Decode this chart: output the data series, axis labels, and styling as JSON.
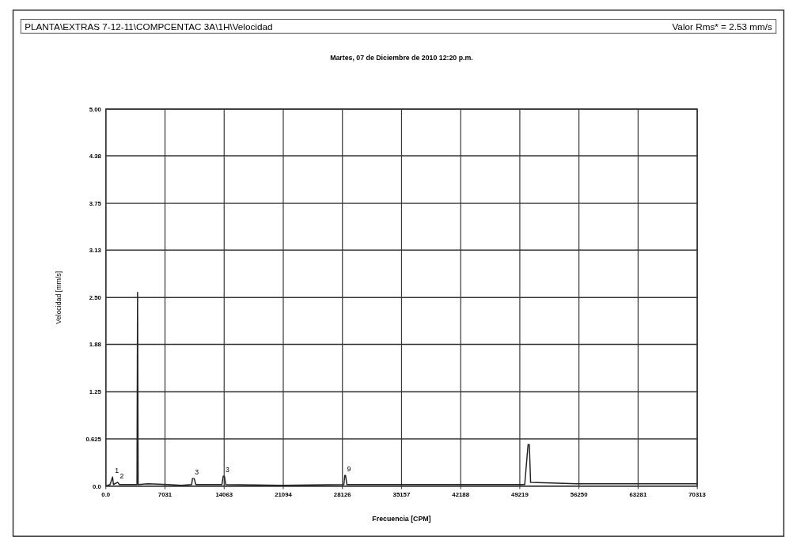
{
  "chart_data": {
    "type": "line",
    "title": "PLANTA\\EXTRAS 7-12-11\\COMPCENTAC 3A\\1H\\Velocidad",
    "subtitle": "Martes, 07 de Diciembre de 2010 12:20 p.m.",
    "xlabel": "Frecuencia [CPM]",
    "ylabel": "Velocidad [mm/s]",
    "annotations": [
      "Valor Rms* = 2.53 mm/s",
      {
        "text": "1",
        "x": 800,
        "y": 0.12
      },
      {
        "text": "2",
        "x": 1400,
        "y": 0.05
      },
      {
        "text": "3",
        "x": 10300,
        "y": 0.1
      },
      {
        "text": "3",
        "x": 13950,
        "y": 0.13
      },
      {
        "text": "9",
        "x": 28400,
        "y": 0.14
      }
    ],
    "series": [
      {
        "color": "#222222",
        "x": [
          0,
          500,
          800,
          900,
          1400,
          1600,
          3700,
          3768,
          3840,
          5000,
          7400,
          9000,
          10200,
          10300,
          10500,
          10700,
          13800,
          13950,
          14100,
          14250,
          21000,
          28300,
          28400,
          28500,
          28650,
          35000,
          42000,
          49800,
          50200,
          50350,
          50500,
          56000,
          63000,
          70313
        ],
        "values": [
          0,
          0.02,
          0.12,
          0.02,
          0.05,
          0.02,
          0.02,
          2.57,
          0.02,
          0.03,
          0.02,
          0.01,
          0.02,
          0.1,
          0.1,
          0.02,
          0.02,
          0.13,
          0.13,
          0.02,
          0.01,
          0.02,
          0.14,
          0.14,
          0.02,
          0.02,
          0.02,
          0.02,
          0.55,
          0.55,
          0.05,
          0.03,
          0.03,
          0.03
        ]
      }
    ],
    "xlim": [
      0,
      70313
    ],
    "ylim": [
      0,
      5
    ],
    "xticks": [
      {
        "value": 0,
        "label": "0.0"
      },
      7031,
      14063,
      21094,
      28126,
      35157,
      42188,
      49219,
      56250,
      63281,
      70313
    ],
    "yticks": [
      {
        "value": 0,
        "label": "0.0"
      },
      0.625,
      1.25,
      1.88,
      {
        "value": 2.5,
        "label": "2.50"
      },
      3.13,
      3.75,
      4.38,
      {
        "value": 5,
        "label": "5.00"
      }
    ],
    "grid": true,
    "marker": "none",
    "line_style": "solid"
  }
}
